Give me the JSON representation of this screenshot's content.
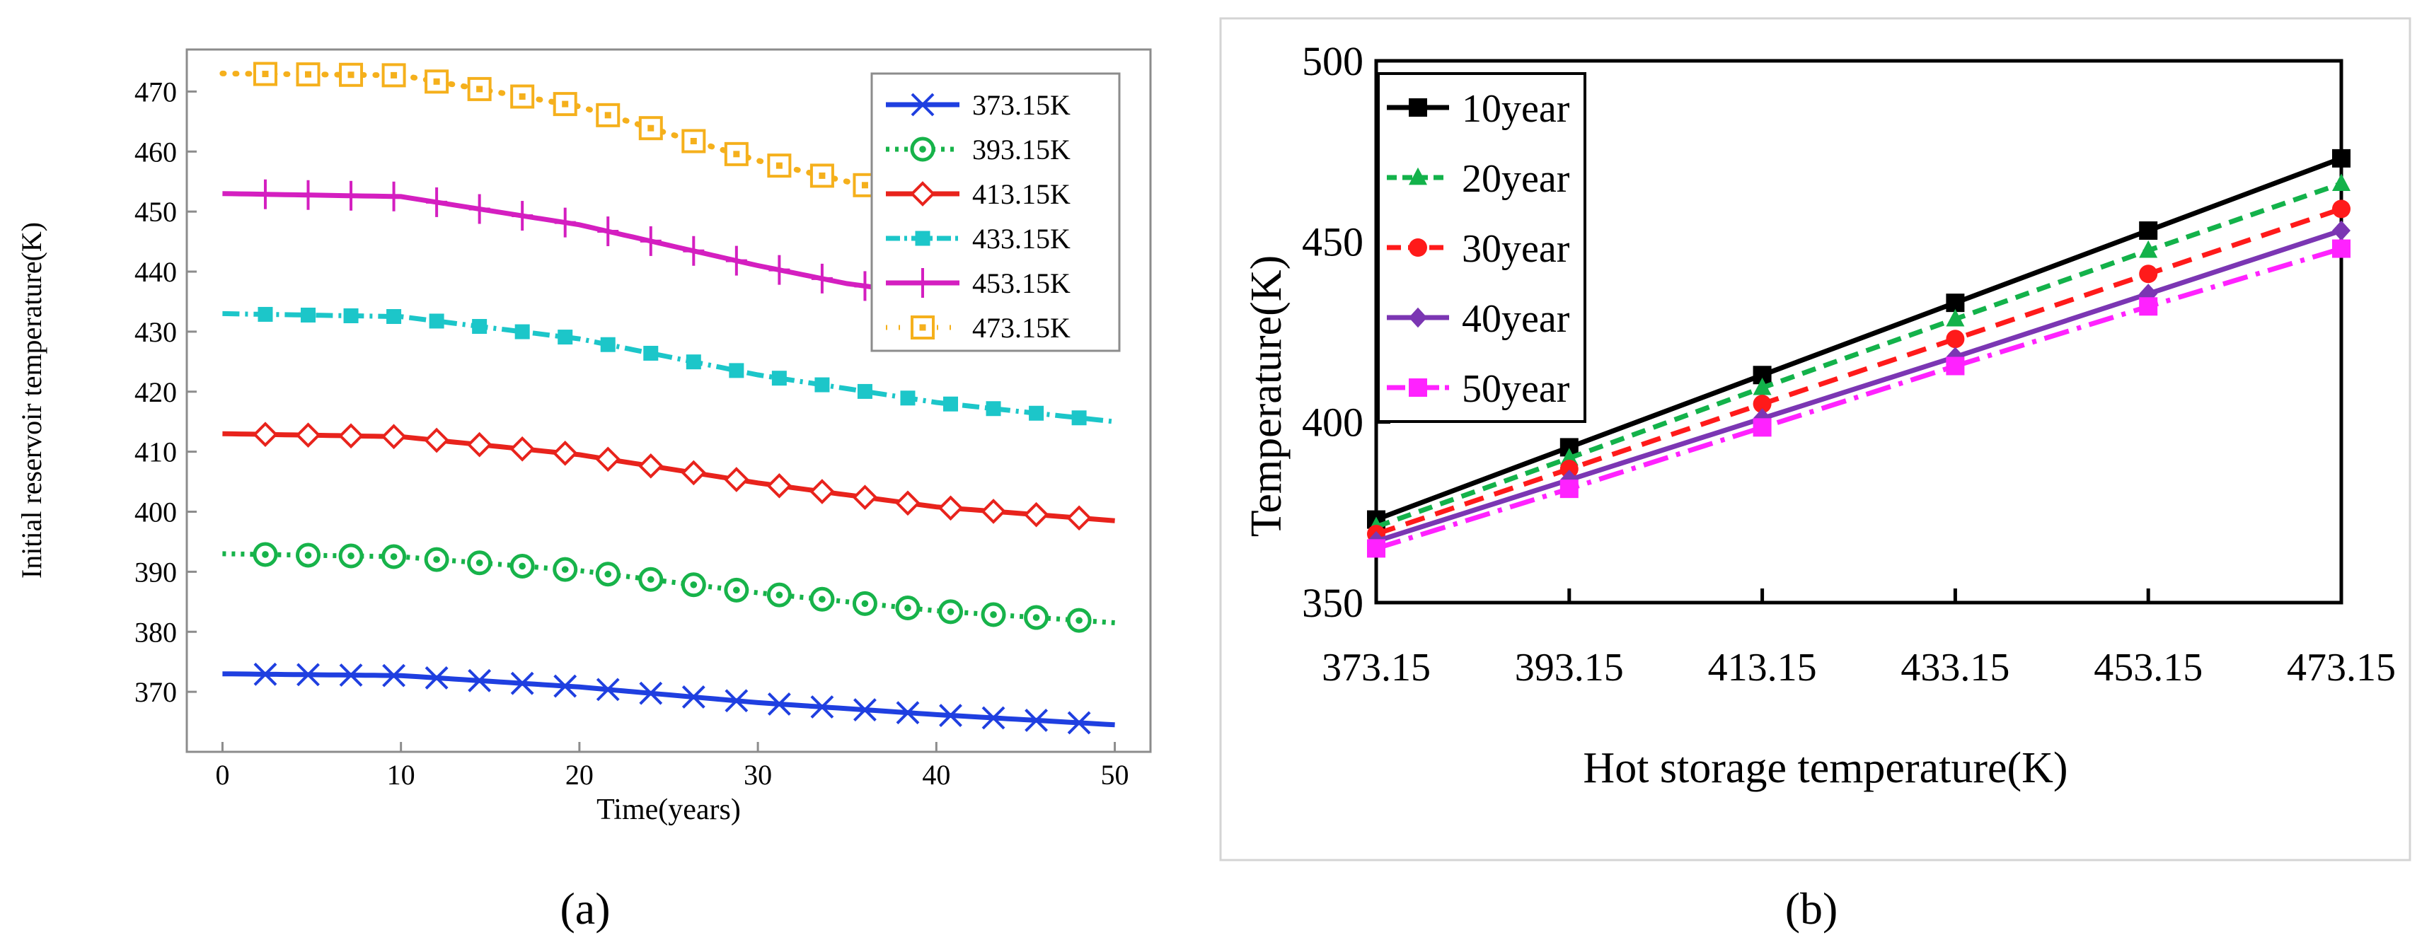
{
  "panel_labels": {
    "a": "(a)",
    "b": "(b)"
  },
  "chart_data": [
    {
      "type": "line",
      "xlabel": "Time(years)",
      "ylabel": "Initial reservoir temperature(K)",
      "xlim": [
        -2,
        52
      ],
      "ylim": [
        360,
        477
      ],
      "xticks": [
        0,
        10,
        20,
        30,
        40,
        50
      ],
      "yticks": [
        370,
        380,
        390,
        400,
        410,
        420,
        430,
        440,
        450,
        460,
        470
      ],
      "grid": false,
      "legend_position": "top-right",
      "series": [
        {
          "name": "373.15K",
          "color": "#1f3fe0",
          "dash": "",
          "marker": "x",
          "x": [
            0,
            10,
            20,
            30,
            40,
            50
          ],
          "y": [
            373,
            372.7,
            370.8,
            368.2,
            366.2,
            364.5
          ]
        },
        {
          "name": "393.15K",
          "color": "#17b34a",
          "dash": "5,8",
          "marker": "circle-dot",
          "x": [
            0,
            10,
            20,
            30,
            40,
            50
          ],
          "y": [
            393,
            392.5,
            390.2,
            386.5,
            383.5,
            381.5
          ]
        },
        {
          "name": "413.15K",
          "color": "#e8231c",
          "dash": "",
          "marker": "diamond-open",
          "x": [
            0,
            10,
            20,
            30,
            40,
            50
          ],
          "y": [
            413,
            412.5,
            409.5,
            404.8,
            400.8,
            398.5
          ]
        },
        {
          "name": "433.15K",
          "color": "#1cc6c9",
          "dash": "24,8,4,8",
          "marker": "square-filled",
          "x": [
            0,
            10,
            20,
            30,
            40,
            50
          ],
          "y": [
            433,
            432.5,
            428.8,
            422.8,
            418.2,
            415
          ]
        },
        {
          "name": "453.15K",
          "color": "#d41fc0",
          "dash": "",
          "marker": "plus",
          "x": [
            0,
            10,
            20,
            30,
            35,
            40,
            50
          ],
          "y": [
            453,
            452.5,
            447.8,
            441,
            438,
            436,
            434
          ]
        },
        {
          "name": "473.15K",
          "color": "#f5b01c",
          "dash": "2,16",
          "marker": "square-open-dot",
          "x": [
            0,
            10,
            20,
            30,
            35,
            40,
            50
          ],
          "y": [
            473,
            472.7,
            467.5,
            458.5,
            455,
            452,
            450
          ]
        }
      ]
    },
    {
      "type": "line",
      "xlabel": "Hot storage temperature(K)",
      "ylabel": "Temperature(K)",
      "categories": [
        "373.15",
        "393.15",
        "413.15",
        "433.15",
        "453.15",
        "473.15"
      ],
      "x": [
        373.15,
        393.15,
        413.15,
        433.15,
        453.15,
        473.15
      ],
      "xlim": [
        373.15,
        473.15
      ],
      "ylim": [
        350,
        500
      ],
      "yticks": [
        350,
        400,
        450,
        500
      ],
      "grid": false,
      "legend_position": "top-left",
      "series": [
        {
          "name": "10year",
          "color": "#000000",
          "dash": "",
          "marker": "square",
          "values": [
            373,
            393,
            413,
            433,
            453,
            473
          ]
        },
        {
          "name": "20year",
          "color": "#13b24a",
          "dash": "20,12",
          "marker": "triangle",
          "values": [
            371,
            390,
            409.5,
            428.5,
            447.5,
            466
          ]
        },
        {
          "name": "30year",
          "color": "#ff1a1a",
          "dash": "28,16",
          "marker": "circle",
          "values": [
            369,
            387,
            405,
            423,
            441,
            459
          ]
        },
        {
          "name": "40year",
          "color": "#7b36b3",
          "dash": "",
          "marker": "diamond",
          "values": [
            367,
            384,
            401,
            418,
            435.5,
            453
          ]
        },
        {
          "name": "50year",
          "color": "#ff22ff",
          "dash": "36,12,6,12",
          "marker": "square",
          "values": [
            365,
            381.5,
            398.5,
            415.5,
            432,
            448
          ]
        }
      ]
    }
  ]
}
